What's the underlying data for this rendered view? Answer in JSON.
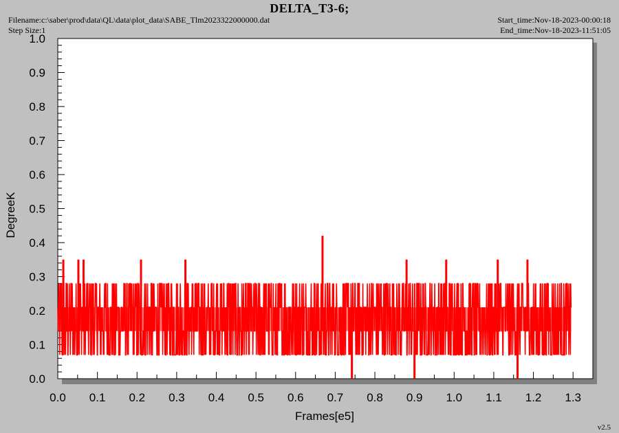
{
  "header": {
    "title": "DELTA_T3-6;",
    "filename": "Filename:c:\\saber\\prod\\data\\QL\\data\\plot_data\\SABE_Tlm2023322000000.dat",
    "step_size": "Step Size:1",
    "start_time": "Start_time:Nov-18-2023-00:00:18",
    "end_time": "End_time:Nov-18-2023-11:51:05"
  },
  "footer": {
    "version": "v2.5"
  },
  "colors": {
    "series": "#ff0000",
    "plot_bg": "#ffffff",
    "frame_bg": "#c0c0c0",
    "shadow": "#808080"
  },
  "chart_data": {
    "type": "line",
    "xlabel": "Frames[e5]",
    "ylabel": "DegreeK",
    "xlim": [
      0.0,
      1.35
    ],
    "ylim": [
      0.0,
      1.0
    ],
    "xticks": [
      "0.0",
      "0.1",
      "0.2",
      "0.3",
      "0.4",
      "0.5",
      "0.6",
      "0.7",
      "0.8",
      "0.9",
      "1.0",
      "1.1",
      "1.2",
      "1.3"
    ],
    "yticks": [
      "0.0",
      "0.1",
      "0.2",
      "0.3",
      "0.4",
      "0.5",
      "0.6",
      "0.7",
      "0.8",
      "0.9",
      "1.0"
    ],
    "grid": false,
    "series": [
      {
        "values_range": [
          0.07,
          0.28
        ],
        "baseline_band": [
          0.14,
          0.21
        ],
        "x_range": [
          0.0,
          1.295
        ],
        "spikes": [
          {
            "x": 0.014,
            "y": 0.35
          },
          {
            "x": 0.052,
            "y": 0.35
          },
          {
            "x": 0.065,
            "y": 0.35
          },
          {
            "x": 0.21,
            "y": 0.35
          },
          {
            "x": 0.322,
            "y": 0.35
          },
          {
            "x": 0.668,
            "y": 0.42
          },
          {
            "x": 0.88,
            "y": 0.35
          },
          {
            "x": 0.98,
            "y": 0.35
          },
          {
            "x": 1.11,
            "y": 0.35
          },
          {
            "x": 1.185,
            "y": 0.35
          }
        ],
        "dips": [
          {
            "x": 0.742,
            "y": 0.0
          },
          {
            "x": 0.9,
            "y": 0.0
          },
          {
            "x": 1.16,
            "y": 0.0
          }
        ]
      }
    ]
  }
}
